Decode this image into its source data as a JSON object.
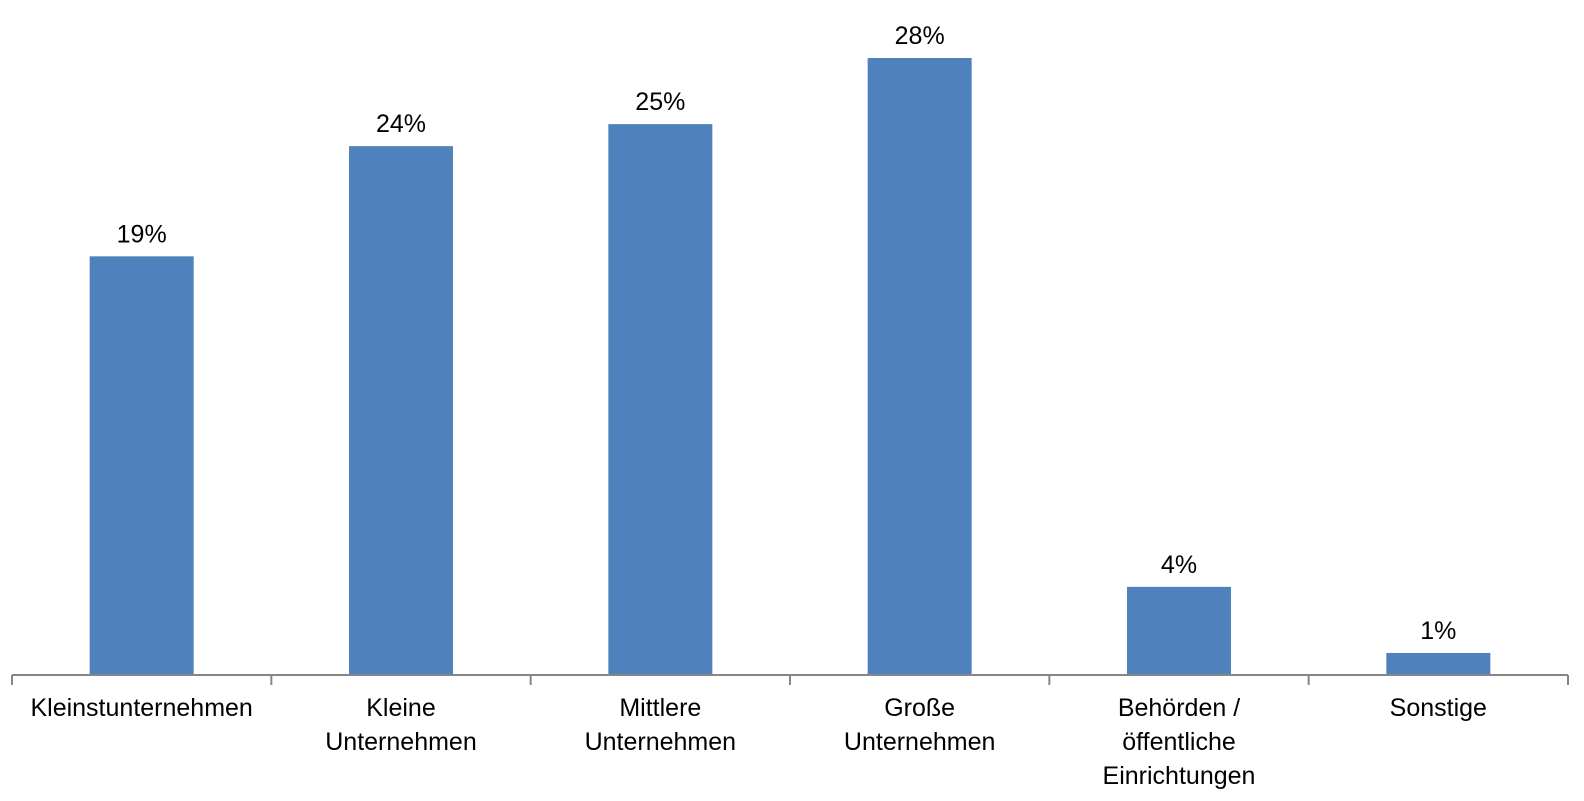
{
  "chart_data": {
    "type": "bar",
    "title": "",
    "xlabel": "",
    "ylabel": "",
    "categories": [
      [
        "Kleinstunternehmen"
      ],
      [
        "Kleine",
        "Unternehmen"
      ],
      [
        "Mittlere",
        "Unternehmen"
      ],
      [
        "Große",
        "Unternehmen"
      ],
      [
        "Behörden /",
        "öffentliche",
        "Einrichtungen"
      ],
      [
        "Sonstige"
      ]
    ],
    "values": [
      19,
      24,
      25,
      28,
      4,
      1
    ],
    "value_labels": [
      "19%",
      "24%",
      "25%",
      "28%",
      "4%",
      "1%"
    ],
    "ylim": [
      0,
      28.5
    ],
    "grid": false,
    "legend": "none",
    "colors": {
      "bar": "#4F81BD",
      "axis": "#868686"
    }
  }
}
